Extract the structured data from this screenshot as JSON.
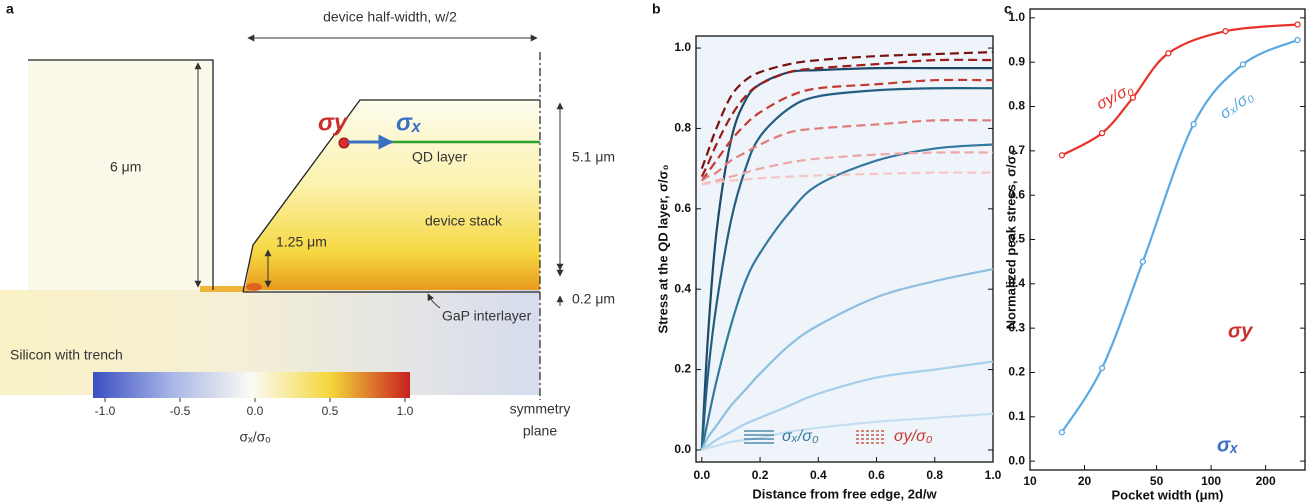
{
  "diagram": {
    "panel_label": "a",
    "width_label": "device half-width, w/2",
    "height_6": "6 μm",
    "height_125": "1.25 μm",
    "height_51": "5.1 μm",
    "height_02": "0.2 μm",
    "qd_layer": "QD layer",
    "device_stack": "device stack",
    "gap_interlayer": "GaP interlayer",
    "silicon": "Silicon with trench",
    "symmetry": [
      "symmetry",
      "plane"
    ],
    "sigma_y": "σy",
    "sigma_x": "σₓ",
    "colorbar": {
      "colors": [
        "#3a4fc1",
        "#a9b6e6",
        "#fbfbf4",
        "#f4d63a",
        "#c7201f"
      ],
      "ticks": [
        {
          "value": -1,
          "label": "-1.0"
        },
        -0.5,
        {
          "value": 0,
          "label": "0.0"
        },
        0.5,
        {
          "value": 1,
          "label": "1.0"
        }
      ],
      "label": "σₓ/σₒ"
    }
  },
  "chart_data": [
    {
      "panel_label": "b",
      "type": "line",
      "xlabel": "Distance from free edge, 2d/w",
      "ylabel": "Stress at the QD layer, σ/σ₀",
      "plot_background": "#eef4f9",
      "x": [
        0,
        0.02,
        0.05,
        0.1,
        0.15,
        0.2,
        0.3,
        0.4,
        0.6,
        0.8,
        1.0
      ],
      "series": [
        {
          "color": "#1d4a68",
          "dashed": false,
          "values": [
            0,
            0.27,
            0.54,
            0.77,
            0.87,
            0.91,
            0.94,
            0.945,
            0.95,
            0.95,
            0.95
          ]
        },
        {
          "color": "#245f82",
          "dashed": false,
          "values": [
            0,
            0.18,
            0.36,
            0.57,
            0.7,
            0.78,
            0.85,
            0.88,
            0.895,
            0.9,
            0.9
          ]
        },
        {
          "color": "#33789e",
          "dashed": false,
          "values": [
            0,
            0.07,
            0.17,
            0.31,
            0.42,
            0.49,
            0.59,
            0.66,
            0.72,
            0.75,
            0.76
          ]
        },
        {
          "color": "#8dbfe0",
          "dashed": false,
          "values": [
            0,
            0.03,
            0.06,
            0.11,
            0.15,
            0.19,
            0.26,
            0.31,
            0.38,
            0.42,
            0.45
          ]
        },
        {
          "color": "#a7cfea",
          "dashed": false,
          "values": [
            0,
            0.01,
            0.025,
            0.045,
            0.065,
            0.08,
            0.11,
            0.14,
            0.18,
            0.2,
            0.22
          ]
        },
        {
          "color": "#c4def1",
          "dashed": false,
          "values": [
            0,
            0.005,
            0.01,
            0.02,
            0.025,
            0.03,
            0.045,
            0.055,
            0.07,
            0.08,
            0.09
          ]
        },
        {
          "color": "#7a1212",
          "dashed": true,
          "values": [
            0.7,
            0.74,
            0.8,
            0.88,
            0.92,
            0.94,
            0.96,
            0.97,
            0.98,
            0.985,
            0.99
          ]
        },
        {
          "color": "#9e1c1c",
          "dashed": true,
          "values": [
            0.68,
            0.71,
            0.76,
            0.83,
            0.88,
            0.91,
            0.94,
            0.95,
            0.96,
            0.97,
            0.97
          ]
        },
        {
          "color": "#c43a30",
          "dashed": true,
          "values": [
            0.67,
            0.69,
            0.72,
            0.77,
            0.81,
            0.84,
            0.88,
            0.9,
            0.91,
            0.92,
            0.92
          ]
        },
        {
          "color": "#e07c7c",
          "dashed": true,
          "values": [
            0.67,
            0.68,
            0.69,
            0.72,
            0.74,
            0.76,
            0.79,
            0.8,
            0.81,
            0.82,
            0.82
          ]
        },
        {
          "color": "#eea6a6",
          "dashed": true,
          "values": [
            0.66,
            0.665,
            0.67,
            0.68,
            0.69,
            0.7,
            0.715,
            0.725,
            0.735,
            0.74,
            0.74
          ]
        },
        {
          "color": "#f5c6c6",
          "dashed": true,
          "values": [
            0.66,
            0.663,
            0.666,
            0.67,
            0.673,
            0.676,
            0.68,
            0.683,
            0.687,
            0.69,
            0.69
          ]
        }
      ],
      "legend": [
        {
          "label": "σₓ/σ₀",
          "color": "#33789e",
          "dashed": false
        },
        {
          "label": "σy/σ₀",
          "color": "#c43a30",
          "dashed": true
        }
      ],
      "xlim": [
        -0.02,
        1.0
      ],
      "ylim": [
        -0.03,
        1.03
      ],
      "xticks": [
        {
          "value": 0,
          "label": "0.0"
        },
        0.2,
        0.4,
        0.6,
        0.8,
        {
          "value": 1,
          "label": "1.0"
        }
      ],
      "yticks": [
        {
          "value": 0,
          "label": "0.0"
        },
        0.2,
        0.4,
        0.6,
        0.8,
        {
          "value": 1,
          "label": "1.0"
        }
      ]
    },
    {
      "panel_label": "c",
      "type": "line",
      "xscale": "log",
      "markers": true,
      "xlabel": "Pocket width (μm)",
      "ylabel": "Normalized peak stress, σ/σ₀",
      "series": [
        {
          "color": "#e8312a",
          "annotation": "σy/σ₀",
          "x": [
            15,
            25,
            37,
            58,
            120,
            300
          ],
          "values": [
            0.69,
            0.74,
            0.82,
            0.92,
            0.97,
            0.985
          ]
        },
        {
          "color": "#5aa9e2",
          "annotation": "σₓ/σ₀",
          "x": [
            15,
            25,
            42,
            80,
            150,
            300
          ],
          "values": [
            0.065,
            0.21,
            0.45,
            0.76,
            0.895,
            0.95
          ]
        }
      ],
      "inset_labels": [
        "σy",
        "σₓ"
      ],
      "xlim": [
        10,
        330
      ],
      "ylim": [
        -0.02,
        1.02
      ],
      "xticks": [
        10,
        20,
        50,
        100,
        200
      ],
      "yticks": [
        {
          "value": 0,
          "label": "0.0"
        },
        0.1,
        0.2,
        0.3,
        0.4,
        0.5,
        0.6,
        0.7,
        0.8,
        0.9,
        {
          "value": 1,
          "label": "1.0"
        }
      ]
    }
  ]
}
